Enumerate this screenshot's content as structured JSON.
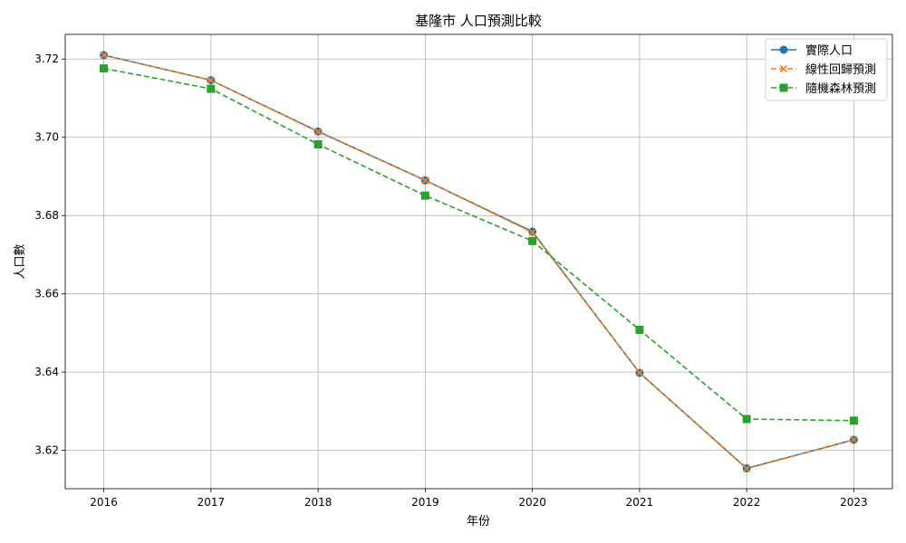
{
  "chart_data": {
    "type": "line",
    "title": "基隆市 人口預測比較",
    "xlabel": "年份",
    "ylabel": "人口數",
    "x": [
      2016,
      2017,
      2018,
      2019,
      2020,
      2021,
      2022,
      2023
    ],
    "xlim": [
      2015.64,
      2023.36
    ],
    "ylim": [
      3.6102,
      3.7263
    ],
    "y_ticks": [
      3.62,
      3.64,
      3.66,
      3.68,
      3.7,
      3.72
    ],
    "y_tick_labels": [
      "3.62",
      "3.64",
      "3.66",
      "3.68",
      "3.70",
      "3.72"
    ],
    "x_tick_labels": [
      "2016",
      "2017",
      "2018",
      "2019",
      "2020",
      "2021",
      "2022",
      "2023"
    ],
    "grid": true,
    "legend_position": "top-right",
    "series": [
      {
        "name": "實際人口",
        "color": "#1f77b4",
        "linestyle": "solid",
        "marker": "circle",
        "values": [
          3.721,
          3.7146,
          3.7015,
          3.689,
          3.6759,
          3.6398,
          3.6154,
          3.6227
        ]
      },
      {
        "name": "線性回歸預測",
        "color": "#ff7f0e",
        "linestyle": "dashed",
        "marker": "x",
        "values": [
          3.721,
          3.7146,
          3.7014,
          3.689,
          3.6757,
          3.6398,
          3.6153,
          3.6227
        ]
      },
      {
        "name": "隨機森林預測",
        "color": "#2ca02c",
        "linestyle": "dashed",
        "marker": "square",
        "values": [
          3.7176,
          3.7124,
          3.6982,
          3.6851,
          3.6735,
          3.6508,
          3.628,
          3.6276
        ]
      }
    ]
  }
}
